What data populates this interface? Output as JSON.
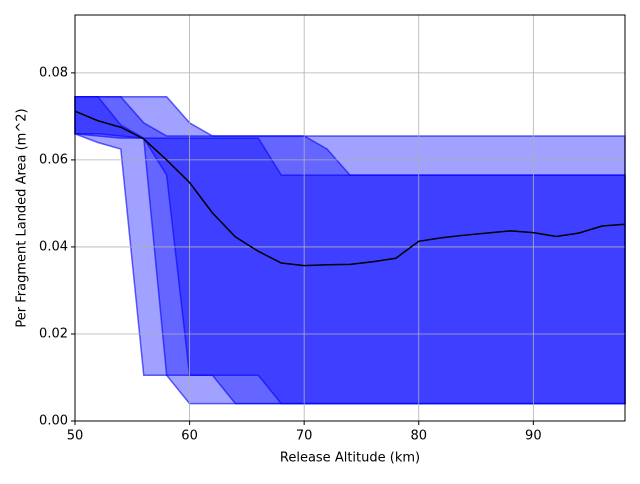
{
  "chart_data": {
    "type": "band-line",
    "xlabel": "Release Altitude (km)",
    "ylabel": "Per Fragment Landed Area (m^2)",
    "x": [
      50,
      52,
      54,
      56,
      58,
      60,
      62,
      64,
      66,
      68,
      70,
      72,
      74,
      76,
      78,
      80,
      82,
      84,
      86,
      88,
      90,
      92,
      94,
      96,
      98
    ],
    "bands": [
      {
        "color": "#0000ff",
        "upper": [
          0.0745,
          0.0745,
          0.0745,
          0.0745,
          0.0745,
          0.0685,
          0.0655,
          0.0655,
          0.0655,
          0.0655,
          0.0655,
          0.0655,
          0.0655,
          0.0655,
          0.0655,
          0.0655,
          0.0655,
          0.0655,
          0.0655,
          0.0655,
          0.0655,
          0.0655,
          0.0655,
          0.0655,
          0.0655
        ],
        "lower": [
          0.066,
          0.064,
          0.0625,
          0.0105,
          0.0105,
          0.004,
          0.004,
          0.004,
          0.004,
          0.004,
          0.004,
          0.004,
          0.004,
          0.004,
          0.004,
          0.004,
          0.004,
          0.004,
          0.004,
          0.004,
          0.004,
          0.004,
          0.004,
          0.004,
          0.004
        ]
      },
      {
        "color": "#0000ff",
        "upper": [
          0.0745,
          0.0745,
          0.0745,
          0.0685,
          0.0655,
          0.0655,
          0.0655,
          0.0655,
          0.0655,
          0.0655,
          0.0655,
          0.0625,
          0.0565,
          0.0565,
          0.0565,
          0.0565,
          0.0565,
          0.0565,
          0.0565,
          0.0565,
          0.0565,
          0.0565,
          0.0565,
          0.0565,
          0.0565
        ],
        "lower": [
          0.066,
          0.066,
          0.0655,
          0.065,
          0.0105,
          0.0105,
          0.0105,
          0.004,
          0.004,
          0.004,
          0.004,
          0.004,
          0.004,
          0.004,
          0.004,
          0.004,
          0.004,
          0.004,
          0.004,
          0.004,
          0.004,
          0.004,
          0.004,
          0.004,
          0.004
        ]
      },
      {
        "color": "#0000ff",
        "upper": [
          0.0745,
          0.0745,
          0.068,
          0.065,
          0.065,
          0.065,
          0.065,
          0.065,
          0.065,
          0.0565,
          0.0565,
          0.0565,
          0.0565,
          0.0565,
          0.0565,
          0.0565,
          0.0565,
          0.0565,
          0.0565,
          0.0565,
          0.0565,
          0.0565,
          0.0565,
          0.0565,
          0.0565
        ],
        "lower": [
          0.066,
          0.0655,
          0.065,
          0.065,
          0.0565,
          0.0105,
          0.0105,
          0.0105,
          0.0105,
          0.004,
          0.004,
          0.004,
          0.004,
          0.004,
          0.004,
          0.004,
          0.004,
          0.004,
          0.004,
          0.004,
          0.004,
          0.004,
          0.004,
          0.004,
          0.004
        ]
      }
    ],
    "series": [
      {
        "color": "#000000",
        "values": [
          0.0712,
          0.069,
          0.0675,
          0.0648,
          0.06,
          0.0548,
          0.0478,
          0.0423,
          0.039,
          0.0363,
          0.0357,
          0.0359,
          0.036,
          0.0366,
          0.0374,
          0.0413,
          0.0421,
          0.0427,
          0.0432,
          0.0437,
          0.0433,
          0.0424,
          0.0432,
          0.0448,
          0.0452
        ]
      }
    ],
    "xlim": [
      50,
      98
    ],
    "ylim": [
      0,
      0.0933
    ],
    "xticks": [
      50,
      60,
      70,
      80,
      90
    ],
    "yticks": [
      {
        "value": 0,
        "label": "0.00"
      },
      {
        "value": 0.02,
        "label": "0.02"
      },
      {
        "value": 0.04,
        "label": "0.04"
      },
      {
        "value": 0.06,
        "label": "0.06"
      },
      {
        "value": 0.08,
        "label": "0.08"
      }
    ],
    "grid": true
  }
}
